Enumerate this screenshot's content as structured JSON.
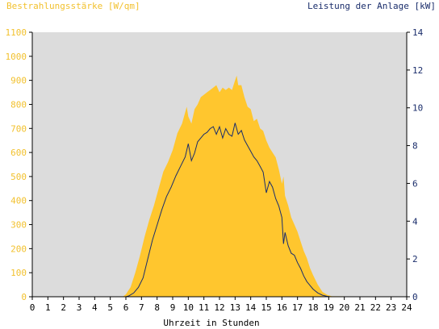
{
  "chart_data": {
    "type": "area",
    "left_axis_title": "Bestrahlungsstärke [W/qm]",
    "right_axis_title": "Leistung der Anlage [kW]",
    "xlabel": "Uhrzeit in Stunden",
    "x_ticks": [
      "0",
      "1",
      "2",
      "3",
      "4",
      "5",
      "6",
      "7",
      "8",
      "9",
      "10",
      "11",
      "12",
      "13",
      "14",
      "15",
      "16",
      "17",
      "18",
      "19",
      "20",
      "21",
      "22",
      "23",
      "24"
    ],
    "xlim": [
      0,
      24
    ],
    "ylim_left": [
      0,
      1100
    ],
    "ylim_right": [
      0,
      14
    ],
    "y_ticks_left": [
      "0",
      "100",
      "200",
      "300",
      "400",
      "500",
      "600",
      "700",
      "800",
      "900",
      "1000",
      "1100"
    ],
    "y_ticks_right": [
      "0",
      "2",
      "4",
      "6",
      "8",
      "10",
      "12",
      "14"
    ],
    "grid": false,
    "colors": {
      "irradiance": "#ffc62e",
      "power": "#1a2d6b",
      "plot_background": "#dcdcdc",
      "left_axis_text": "#f2c12e",
      "right_axis_text": "#1a2d6b"
    },
    "series": [
      {
        "name": "Bestrahlungsstärke [W/qm]",
        "axis": "left",
        "style": "area",
        "x": [
          0,
          5.8,
          6.0,
          6.3,
          6.6,
          6.9,
          7.2,
          7.5,
          7.8,
          8.1,
          8.4,
          8.7,
          9.0,
          9.3,
          9.6,
          9.9,
          10.0,
          10.2,
          10.4,
          10.6,
          10.8,
          11.0,
          11.2,
          11.4,
          11.6,
          11.8,
          12.0,
          12.2,
          12.4,
          12.6,
          12.8,
          13.0,
          13.1,
          13.2,
          13.4,
          13.6,
          13.8,
          14.0,
          14.2,
          14.4,
          14.6,
          14.8,
          15.0,
          15.2,
          15.4,
          15.6,
          15.8,
          16.0,
          16.1,
          16.2,
          16.4,
          16.6,
          16.8,
          17.0,
          17.2,
          17.4,
          17.6,
          17.8,
          18.0,
          18.3,
          18.6,
          18.9,
          19.2,
          24
        ],
        "y": [
          0,
          0,
          10,
          40,
          100,
          170,
          250,
          320,
          380,
          450,
          520,
          560,
          610,
          680,
          720,
          790,
          750,
          720,
          780,
          800,
          830,
          840,
          850,
          860,
          870,
          880,
          850,
          870,
          860,
          870,
          860,
          900,
          920,
          880,
          880,
          830,
          790,
          780,
          730,
          740,
          700,
          690,
          650,
          620,
          600,
          580,
          530,
          470,
          500,
          420,
          380,
          330,
          300,
          270,
          230,
          190,
          160,
          120,
          90,
          50,
          20,
          8,
          2,
          0
        ]
      },
      {
        "name": "Leistung der Anlage [kW]",
        "axis": "right",
        "style": "line",
        "x": [
          0,
          6.0,
          6.2,
          6.5,
          6.8,
          7.1,
          7.4,
          7.7,
          8.0,
          8.3,
          8.6,
          8.9,
          9.2,
          9.5,
          9.8,
          10.0,
          10.2,
          10.4,
          10.6,
          10.8,
          11.0,
          11.2,
          11.4,
          11.6,
          11.8,
          12.0,
          12.2,
          12.4,
          12.6,
          12.8,
          13.0,
          13.2,
          13.4,
          13.6,
          13.8,
          14.0,
          14.2,
          14.4,
          14.6,
          14.8,
          15.0,
          15.2,
          15.4,
          15.6,
          15.8,
          16.0,
          16.1,
          16.2,
          16.4,
          16.6,
          16.8,
          17.0,
          17.2,
          17.4,
          17.6,
          17.8,
          18.0,
          18.3,
          18.6,
          18.9,
          19.1,
          19.3,
          24
        ],
        "y": [
          0,
          0,
          0.05,
          0.2,
          0.5,
          1.0,
          2.0,
          3.0,
          3.8,
          4.6,
          5.3,
          5.8,
          6.4,
          6.9,
          7.4,
          8.1,
          7.2,
          7.6,
          8.2,
          8.4,
          8.6,
          8.7,
          8.9,
          9.0,
          8.6,
          9.0,
          8.4,
          8.9,
          8.6,
          8.5,
          9.2,
          8.6,
          8.8,
          8.3,
          8.0,
          7.7,
          7.4,
          7.2,
          6.9,
          6.6,
          5.5,
          6.1,
          5.8,
          5.2,
          4.8,
          4.2,
          2.8,
          3.4,
          2.7,
          2.3,
          2.2,
          1.8,
          1.5,
          1.1,
          0.8,
          0.6,
          0.4,
          0.2,
          0.08,
          0.02,
          0,
          0,
          0
        ]
      }
    ]
  }
}
